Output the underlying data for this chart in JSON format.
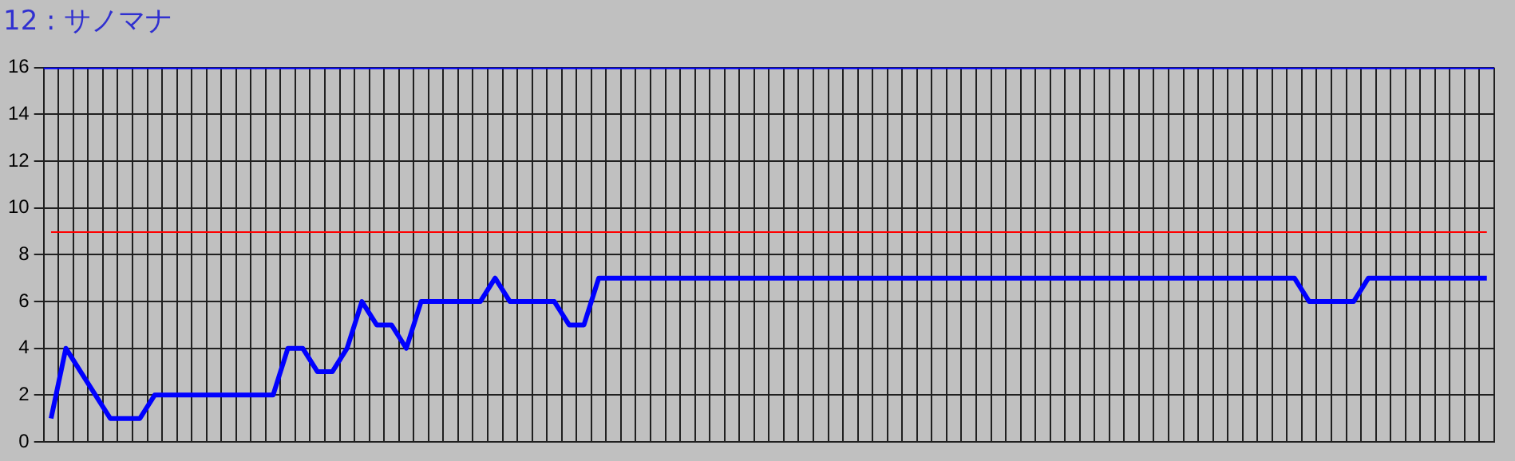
{
  "chart_data": {
    "type": "line",
    "title": "12 : サノマナ",
    "categories": [
      null,
      null,
      null,
      null,
      null,
      null,
      null,
      null,
      null,
      null,
      null,
      null,
      null,
      null,
      null,
      null,
      null,
      null,
      null,
      null,
      null,
      null,
      null,
      null,
      null,
      null,
      null,
      null,
      null,
      null,
      null,
      null,
      null,
      null,
      null,
      null,
      null,
      null,
      null,
      null,
      null,
      null,
      null,
      null,
      null,
      null,
      null,
      null,
      null,
      null,
      null,
      null,
      null,
      null,
      null,
      null,
      null,
      null,
      null,
      null,
      null,
      null,
      null,
      null,
      null,
      null,
      null,
      null,
      null,
      null,
      null,
      null,
      null,
      null,
      null,
      null,
      null,
      null,
      null,
      null,
      null,
      null,
      null,
      null,
      null,
      null,
      null,
      null,
      null,
      null,
      null,
      null,
      null,
      null,
      null,
      null,
      null,
      null
    ],
    "series": [
      {
        "color": "#0000ff",
        "values": [
          1,
          4,
          3,
          2,
          1,
          1,
          1,
          2,
          2,
          2,
          2,
          2,
          2,
          2,
          2,
          2,
          4,
          4,
          3,
          3,
          4,
          6,
          5,
          5,
          4,
          6,
          6,
          6,
          6,
          6,
          7,
          6,
          6,
          6,
          6,
          5,
          5,
          7,
          7,
          7,
          7,
          7,
          7,
          7,
          7,
          7,
          7,
          7,
          7,
          7,
          7,
          7,
          7,
          7,
          7,
          7,
          7,
          7,
          7,
          7,
          7,
          7,
          7,
          7,
          7,
          7,
          7,
          7,
          7,
          7,
          7,
          7,
          7,
          7,
          7,
          7,
          7,
          7,
          7,
          7,
          7,
          7,
          7,
          7,
          7,
          6,
          6,
          6,
          6,
          7,
          7,
          7,
          7,
          7,
          7,
          7,
          7,
          7
        ]
      }
    ],
    "ylim": [
      0,
      16
    ],
    "yticks": [
      0,
      2,
      4,
      6,
      8,
      10,
      12,
      14,
      16
    ],
    "ref_lines": [
      {
        "axis": "y",
        "value": 9,
        "color": "#ff0000"
      }
    ],
    "grid": true,
    "legend": false,
    "marker": "none",
    "line_style": "solid",
    "tick_labels": "y"
  }
}
